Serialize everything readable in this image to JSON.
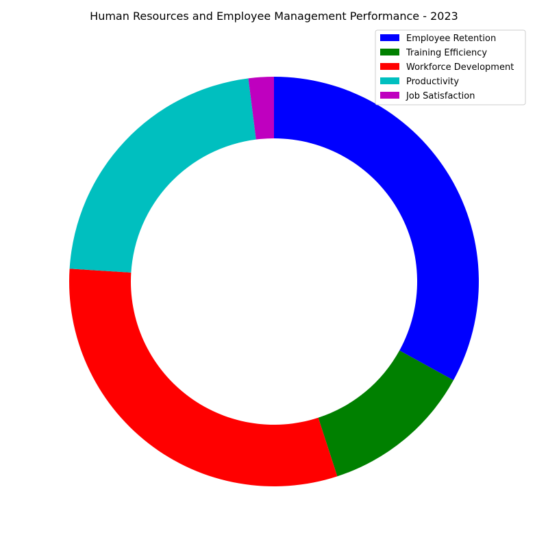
{
  "chart_data": {
    "type": "pie",
    "style": "donut",
    "title": "Human Resources and Employee Management Performance - 2023",
    "legend_position": "top-right",
    "start_angle_deg": 90,
    "direction": "clockwise",
    "categories": [
      "Employee Retention",
      "Training Efficiency",
      "Workforce Development",
      "Productivity",
      "Job Satisfaction"
    ],
    "values": [
      33,
      12,
      31,
      22,
      2
    ],
    "colors": [
      "#0000ff",
      "#008000",
      "#ff0000",
      "#00bfbf",
      "#bf00bf"
    ]
  }
}
